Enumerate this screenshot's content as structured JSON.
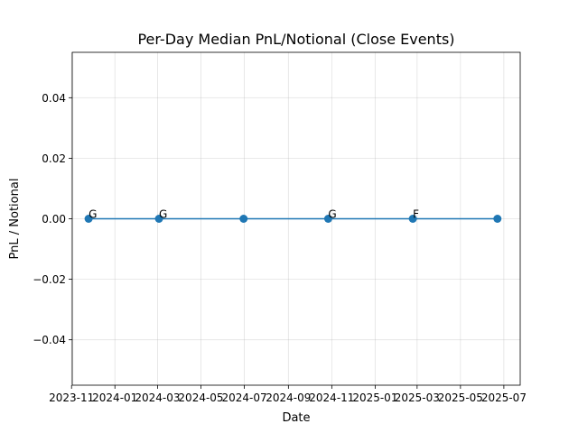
{
  "chart_data": {
    "type": "line",
    "title": "Per-Day Median PnL/Notional (Close Events)",
    "xlabel": "Date",
    "ylabel": "PnL / Notional",
    "x_type": "date",
    "xlim": [
      "2023-11-02",
      "2025-07-24"
    ],
    "ylim": [
      -0.055,
      0.055
    ],
    "x_ticks": [
      "2023-11-01",
      "2024-01-01",
      "2024-03-01",
      "2024-05-01",
      "2024-07-01",
      "2024-09-01",
      "2024-11-01",
      "2025-01-01",
      "2025-03-01",
      "2025-05-01",
      "2025-07-01"
    ],
    "x_tick_labels": [
      "2023-11",
      "2024-01",
      "2024-03",
      "2024-05",
      "2024-07",
      "2024-09",
      "2024-11",
      "2025-01",
      "2025-03",
      "2025-05",
      "2025-07"
    ],
    "y_ticks": [
      -0.04,
      -0.02,
      0.0,
      0.02,
      0.04
    ],
    "y_tick_labels": [
      "−0.04",
      "−0.02",
      "0.00",
      "0.02",
      "0.04"
    ],
    "grid": true,
    "series": [
      {
        "color": "#1f77b4",
        "x": [
          "2023-11-25",
          "2024-03-03",
          "2024-06-30",
          "2024-10-27",
          "2025-02-23",
          "2025-06-22"
        ],
        "y": [
          0,
          0,
          0,
          0,
          0,
          0
        ],
        "point_labels": [
          "G",
          "G",
          "",
          "G",
          "F",
          ""
        ]
      }
    ]
  }
}
